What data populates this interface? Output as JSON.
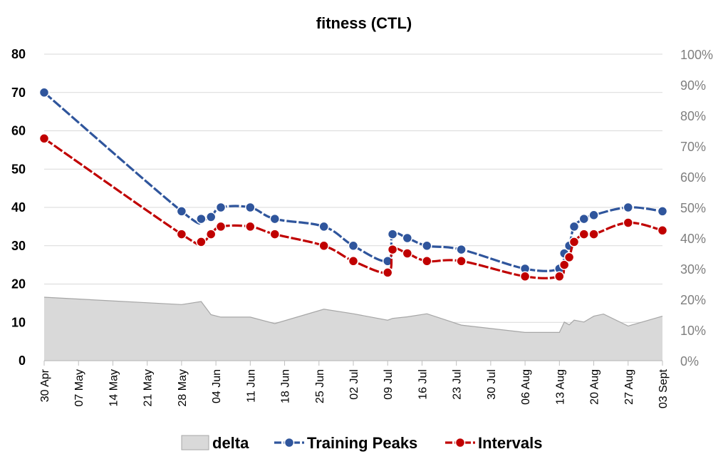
{
  "chart_data": {
    "type": "line",
    "title": "fitness (CTL)",
    "x_tick_labels": [
      "30 Apr",
      "07 May",
      "14 May",
      "21 May",
      "28 May",
      "04 Jun",
      "11 Jun",
      "18 Jun",
      "25 Jun",
      "02 Jul",
      "09 Jul",
      "16 Jul",
      "23 Jul",
      "30 Jul",
      "06 Aug",
      "13 Aug",
      "20 Aug",
      "27 Aug",
      "03 Sept"
    ],
    "x_range": [
      "2023-04-30",
      "2023-09-03"
    ],
    "y_left": {
      "ticks": [
        0,
        10,
        20,
        30,
        40,
        50,
        60,
        70,
        80
      ],
      "range": [
        0,
        80
      ]
    },
    "y_right": {
      "ticks": [
        "0%",
        "10%",
        "20%",
        "30%",
        "40%",
        "50%",
        "60%",
        "70%",
        "80%",
        "90%",
        "100%"
      ],
      "range": [
        0,
        100
      ]
    },
    "grid": true,
    "legend_position": "bottom",
    "series": [
      {
        "name": "delta",
        "kind": "area",
        "axis": "right",
        "color": "#d9d9d9",
        "edge_color": "#a6a6a6",
        "x": [
          "2023-04-30",
          "2023-05-28",
          "2023-06-01",
          "2023-06-03",
          "2023-06-05",
          "2023-06-11",
          "2023-06-16",
          "2023-06-26",
          "2023-07-02",
          "2023-07-09",
          "2023-07-10",
          "2023-07-13",
          "2023-07-17",
          "2023-07-24",
          "2023-08-06",
          "2023-08-13",
          "2023-08-14",
          "2023-08-15",
          "2023-08-16",
          "2023-08-18",
          "2023-08-20",
          "2023-08-22",
          "2023-08-27",
          "2023-09-03"
        ],
        "values": [
          20.7,
          18.3,
          19.3,
          15.0,
          14.2,
          14.2,
          12.1,
          16.8,
          15.3,
          13.2,
          13.8,
          14.3,
          15.3,
          11.6,
          9.2,
          9.2,
          12.6,
          11.7,
          13.2,
          12.6,
          14.5,
          15.2,
          11.3,
          14.5
        ]
      },
      {
        "name": "Training Peaks",
        "kind": "line",
        "axis": "left",
        "color": "#2f559c",
        "dashed": true,
        "x": [
          "2023-04-30",
          "2023-05-28",
          "2023-06-01",
          "2023-06-03",
          "2023-06-05",
          "2023-06-11",
          "2023-06-16",
          "2023-06-26",
          "2023-07-02",
          "2023-07-09",
          "2023-07-10",
          "2023-07-13",
          "2023-07-17",
          "2023-07-24",
          "2023-08-06",
          "2023-08-13",
          "2023-08-14",
          "2023-08-15",
          "2023-08-16",
          "2023-08-18",
          "2023-08-20",
          "2023-08-27",
          "2023-09-03"
        ],
        "values": [
          70,
          39,
          37,
          37.5,
          40,
          40,
          37,
          35,
          30,
          26,
          33,
          32,
          30,
          29,
          24,
          24,
          28,
          30,
          35,
          37,
          38,
          40,
          39
        ]
      },
      {
        "name": "Intervals",
        "kind": "line",
        "axis": "left",
        "color": "#c00000",
        "dashed": true,
        "x": [
          "2023-04-30",
          "2023-05-28",
          "2023-06-01",
          "2023-06-03",
          "2023-06-05",
          "2023-06-11",
          "2023-06-16",
          "2023-06-26",
          "2023-07-02",
          "2023-07-09",
          "2023-07-10",
          "2023-07-13",
          "2023-07-17",
          "2023-07-24",
          "2023-08-06",
          "2023-08-13",
          "2023-08-14",
          "2023-08-15",
          "2023-08-16",
          "2023-08-18",
          "2023-08-20",
          "2023-08-27",
          "2023-09-03"
        ],
        "values": [
          58,
          33,
          31,
          33,
          35,
          35,
          33,
          30,
          26,
          23,
          29,
          28,
          26,
          26,
          22,
          22,
          25,
          27,
          31,
          33,
          33,
          36,
          34
        ]
      }
    ]
  }
}
